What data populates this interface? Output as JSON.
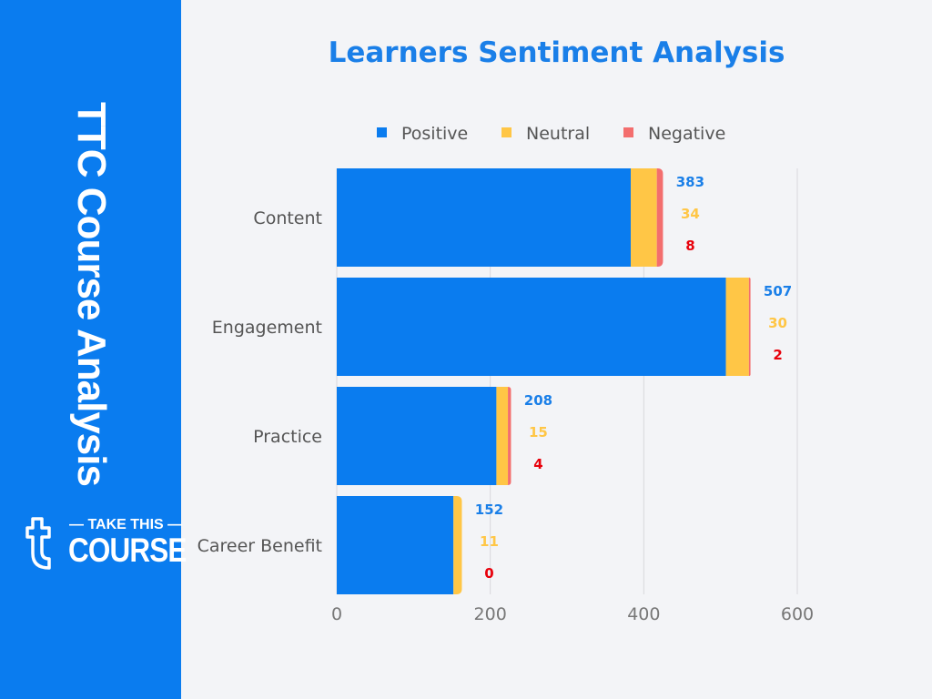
{
  "sidebar": {
    "title": "TTC Course Analysis",
    "logo_text": "TAKE THIS COURSE"
  },
  "chart_data": {
    "type": "bar",
    "orientation": "horizontal",
    "stacked": true,
    "title": "Learners Sentiment Analysis",
    "categories": [
      "Content",
      "Engagement",
      "Practice",
      "Career Benefit"
    ],
    "series": [
      {
        "name": "Positive",
        "color": "#0a7cef",
        "label_color": "#1a7fe8",
        "values": [
          383,
          507,
          208,
          152
        ]
      },
      {
        "name": "Neutral",
        "color": "#ffc646",
        "label_color": "#ffc646",
        "values": [
          34,
          30,
          15,
          11
        ]
      },
      {
        "name": "Negative",
        "color": "#f36e6e",
        "label_color": "#e8000b",
        "values": [
          8,
          2,
          4,
          0
        ]
      }
    ],
    "xlim": [
      0,
      600
    ],
    "xticks": [
      0,
      200,
      400,
      600
    ],
    "grid": true,
    "legend": "top"
  }
}
